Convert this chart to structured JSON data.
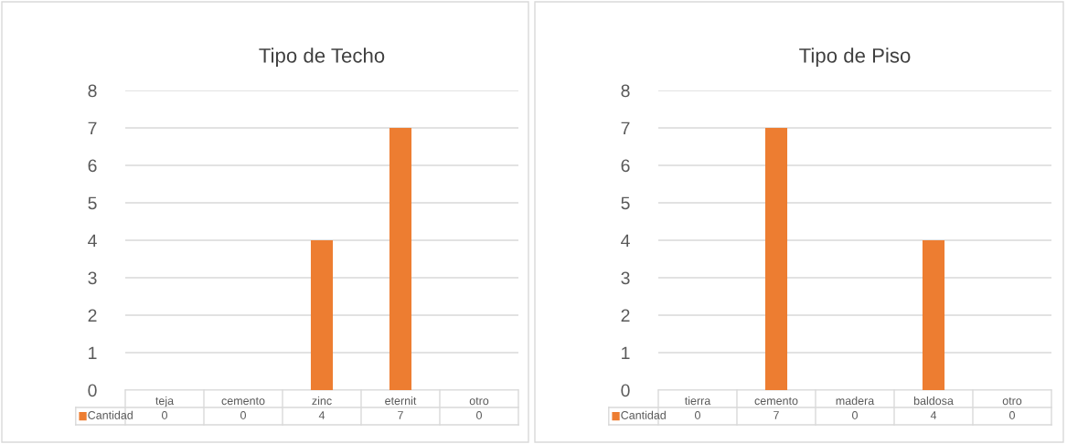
{
  "chart_data": [
    {
      "type": "bar",
      "title": "Tipo de Techo",
      "categories": [
        "teja",
        "cemento",
        "zinc",
        "eternit",
        "otro"
      ],
      "series": [
        {
          "name": "Cantidad",
          "color": "#ed7d31",
          "values": [
            0,
            0,
            4,
            7,
            0
          ]
        }
      ],
      "ylim": [
        0,
        8
      ],
      "yticks": [
        0,
        1,
        2,
        3,
        4,
        5,
        6,
        7,
        8
      ],
      "grid": "y",
      "data_labels": true
    },
    {
      "type": "bar",
      "title": "Tipo de Piso",
      "categories": [
        "tierra",
        "cemento",
        "madera",
        "baldosa",
        "otro"
      ],
      "series": [
        {
          "name": "Cantidad",
          "color": "#ed7d31",
          "values": [
            0,
            7,
            0,
            4,
            0
          ]
        }
      ],
      "ylim": [
        0,
        8
      ],
      "yticks": [
        0,
        1,
        2,
        3,
        4,
        5,
        6,
        7,
        8
      ],
      "grid": "y",
      "data_labels": true
    }
  ]
}
